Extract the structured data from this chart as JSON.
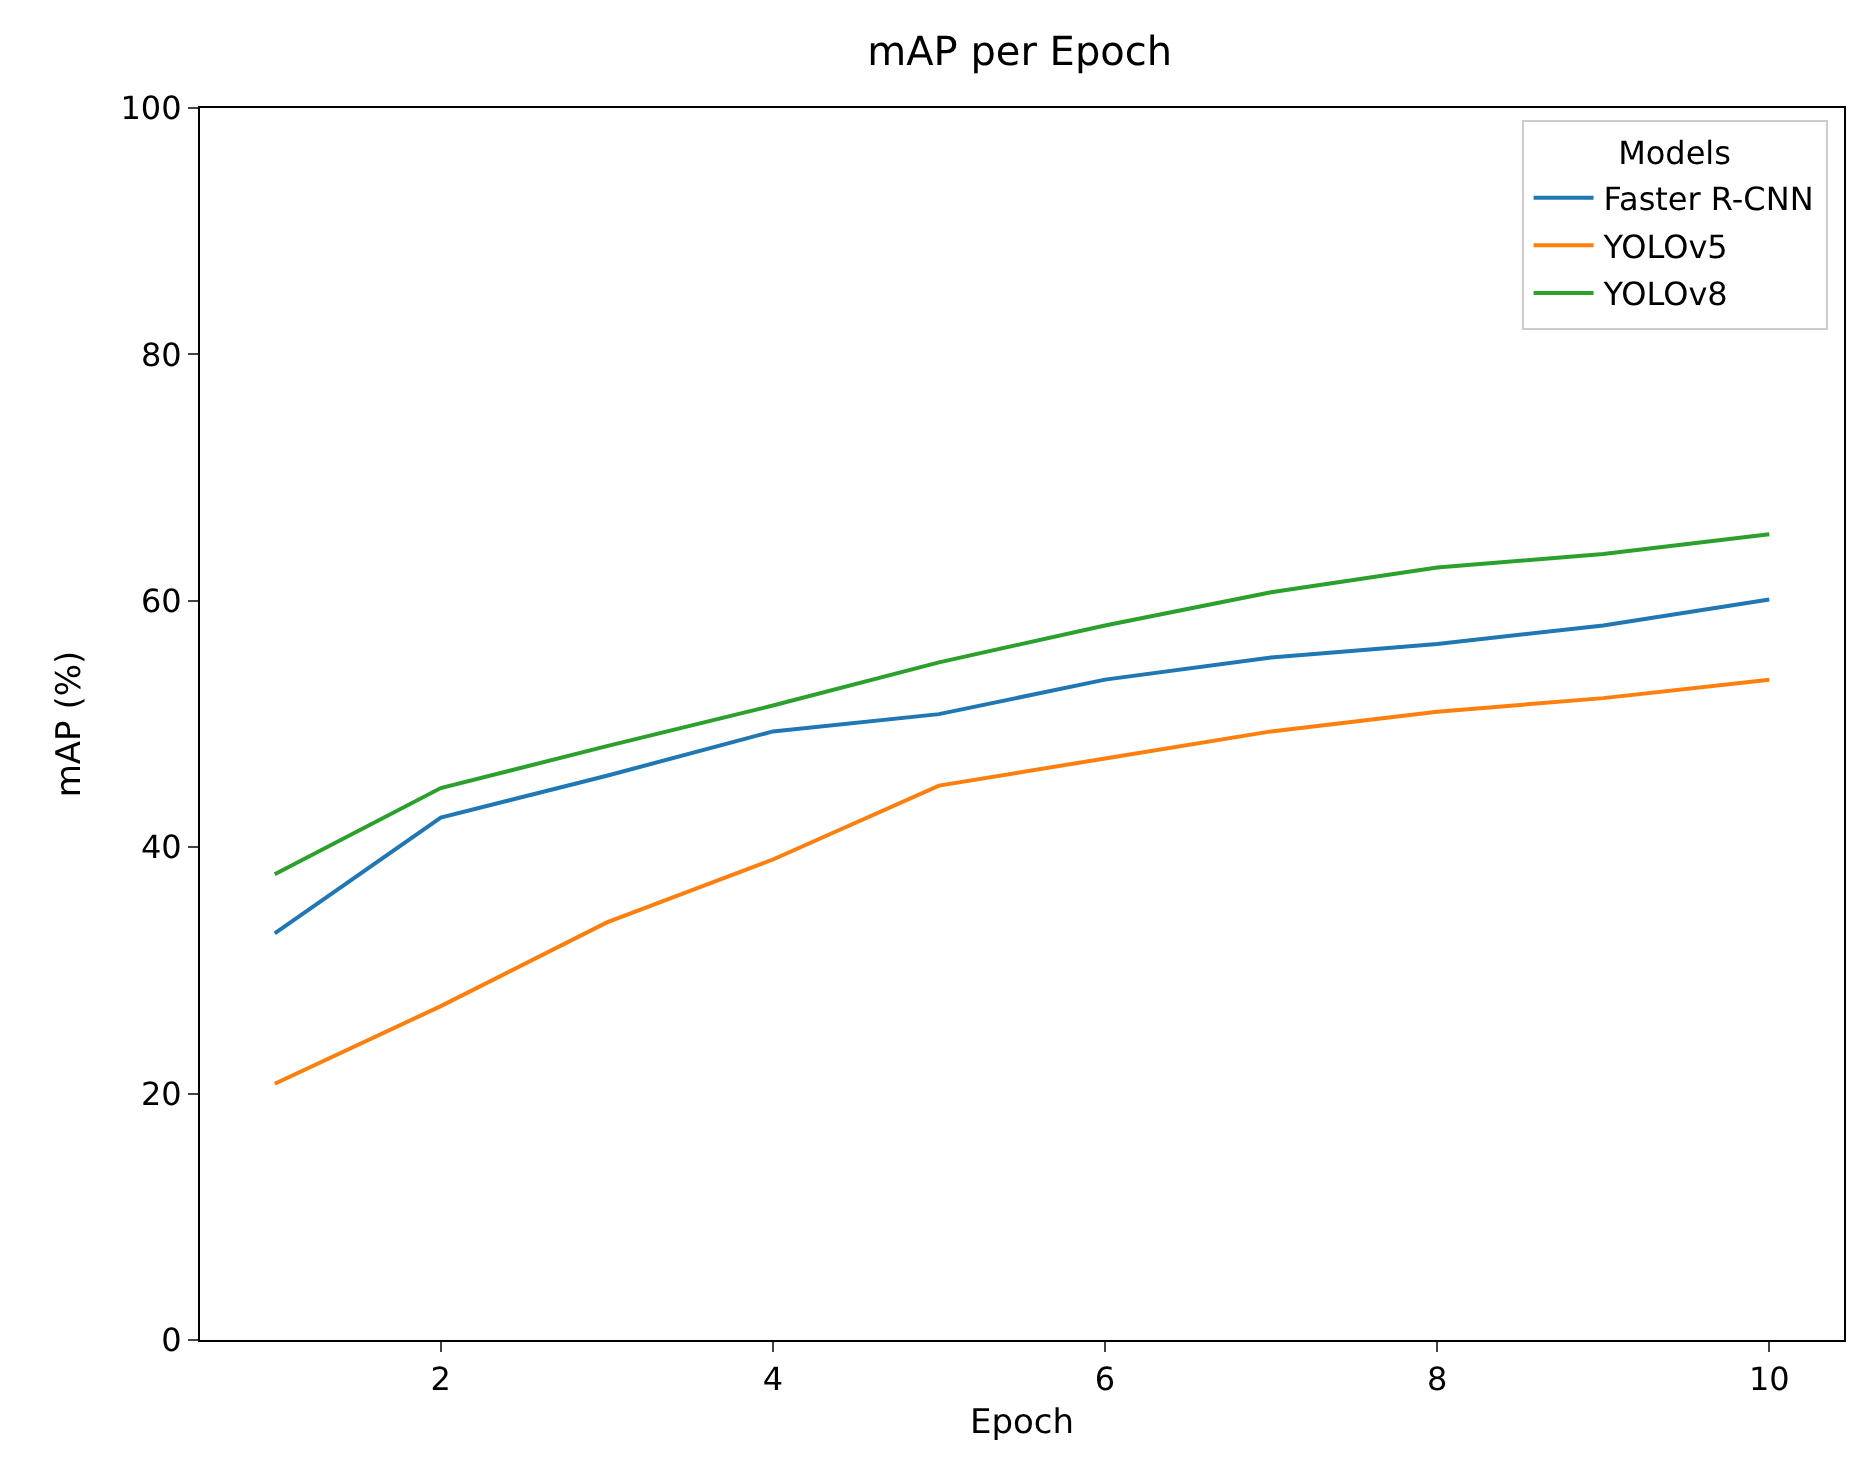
{
  "chart_data": {
    "type": "line",
    "title": "mAP per Epoch",
    "xlabel": "Epoch",
    "ylabel": "mAP (%)",
    "legend_title": "Models",
    "legend": "top right",
    "x": [
      1,
      2,
      3,
      4,
      5,
      6,
      7,
      8,
      9,
      10
    ],
    "xlim": [
      0.55,
      10.45
    ],
    "xticks": [
      2,
      4,
      6,
      8,
      10
    ],
    "ylim": [
      0,
      100
    ],
    "yticks": [
      0,
      20,
      40,
      60,
      80,
      100
    ],
    "series": [
      {
        "name": "Faster R-CNN",
        "color": "#1f77b4",
        "values": [
          33.0,
          42.4,
          45.8,
          49.4,
          50.8,
          53.6,
          55.4,
          56.5,
          58.0,
          60.1
        ]
      },
      {
        "name": "YOLOv5",
        "color": "#ff7f0e",
        "values": [
          20.8,
          27.1,
          33.9,
          39.0,
          45.0,
          47.2,
          49.4,
          51.0,
          52.1,
          53.6
        ]
      },
      {
        "name": "YOLOv8",
        "color": "#2ca02c",
        "values": [
          37.8,
          44.8,
          48.2,
          51.5,
          55.0,
          58.0,
          60.7,
          62.7,
          63.8,
          65.4
        ]
      }
    ]
  }
}
